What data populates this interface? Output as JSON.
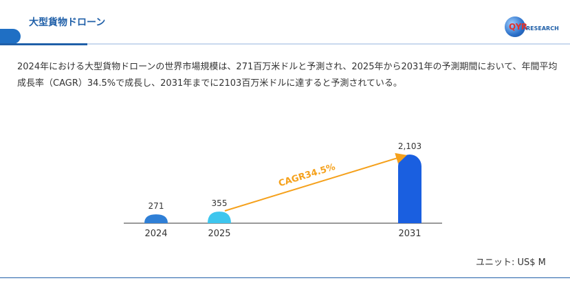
{
  "header": {
    "title": "大型貨物ドローン",
    "logo_main": "QYR",
    "logo_sub": "RESEARCH"
  },
  "summary": "2024年における大型貨物ドローンの世界市場規模は、271百万米ドルと予測され、2025年から2031年の予測期間において、年間平均成長率（CAGR）34.5%で成長し、2031年までに2103百万米ドルに達すると予測されている。",
  "unit_label": "ユニット: US$ M",
  "colors": {
    "accent": "#1f5fa8",
    "bar_2024": "#2f7fd6",
    "bar_2025": "#3ec6ee",
    "bar_2031": "#1a5fe0",
    "cagr": "#f5a11c"
  },
  "chart_data": {
    "type": "bar",
    "categories": [
      "2024",
      "2025",
      "2031"
    ],
    "values": [
      271,
      355,
      2103
    ],
    "value_labels": [
      "271",
      "355",
      "2,103"
    ],
    "annotation": "CAGR34.5%"
  }
}
